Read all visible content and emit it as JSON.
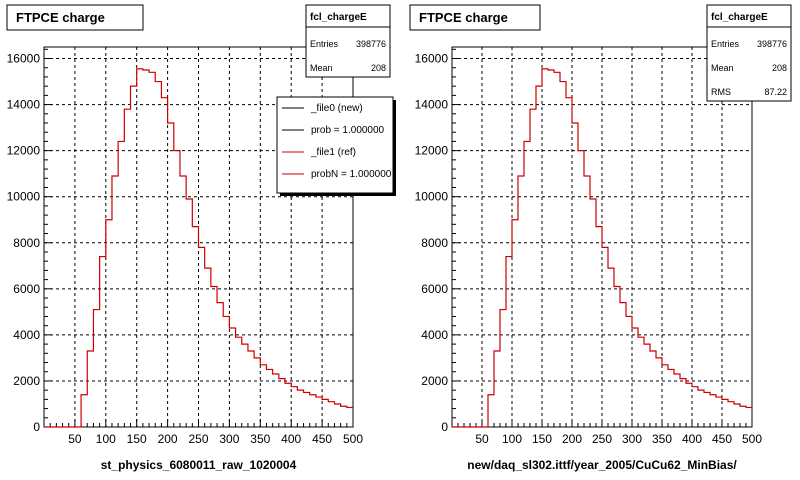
{
  "panels": [
    {
      "title": "FTPCE charge",
      "xlabel": "st_physics_6080011_raw_1020004",
      "stats": {
        "name": "fcl_chargeE",
        "rows": [
          {
            "label": "Entries",
            "value": "398776"
          },
          {
            "label": "Mean",
            "value": "208"
          }
        ]
      },
      "legend": [
        {
          "label": "_file0 (new)",
          "color": "#000000"
        },
        {
          "label": "prob = 1.000000",
          "color": "#000000"
        },
        {
          "label": "_file1 (ref)",
          "color": "#cc0000"
        },
        {
          "label": "probN = 1.000000",
          "color": "#cc0000"
        }
      ]
    },
    {
      "title": "FTPCE charge",
      "xlabel": "new/daq_sl302.ittf/year_2005/CuCu62_MinBias/",
      "stats": {
        "name": "fcl_chargeE",
        "rows": [
          {
            "label": "Entries",
            "value": "398776"
          },
          {
            "label": "Mean",
            "value": "208"
          },
          {
            "label": "RMS",
            "value": "87.22"
          }
        ]
      },
      "legend": []
    }
  ],
  "colors": {
    "histogram": "#cc0000",
    "grid": "#000000"
  },
  "chart_data": [
    {
      "type": "histogram-step",
      "title": "FTPCE charge",
      "xlabel": "st_physics_6080011_raw_1020004",
      "ylabel": "",
      "xlim": [
        0,
        500
      ],
      "ylim": [
        0,
        16500
      ],
      "xticks": [
        50,
        100,
        150,
        200,
        250,
        300,
        350,
        400,
        450,
        500
      ],
      "yticks": [
        0,
        2000,
        4000,
        6000,
        8000,
        10000,
        12000,
        14000,
        16000
      ],
      "grid": true,
      "bin_width": 10,
      "bin_edges_start": 0,
      "values": [
        0,
        0,
        0,
        0,
        0,
        0,
        1400,
        3300,
        5100,
        7400,
        9000,
        10900,
        12400,
        13800,
        14800,
        15550,
        15500,
        15400,
        15000,
        14300,
        13200,
        12000,
        10900,
        9900,
        8700,
        7800,
        6900,
        6100,
        5400,
        4800,
        4300,
        3900,
        3600,
        3300,
        3000,
        2700,
        2500,
        2300,
        2100,
        1900,
        1750,
        1600,
        1500,
        1400,
        1300,
        1200,
        1100,
        1000,
        900,
        850
      ]
    },
    {
      "type": "histogram-step",
      "title": "FTPCE charge",
      "xlabel": "new/daq_sl302.ittf/year_2005/CuCu62_MinBias/",
      "ylabel": "",
      "xlim": [
        0,
        500
      ],
      "ylim": [
        0,
        16500
      ],
      "xticks": [
        50,
        100,
        150,
        200,
        250,
        300,
        350,
        400,
        450,
        500
      ],
      "yticks": [
        0,
        2000,
        4000,
        6000,
        8000,
        10000,
        12000,
        14000,
        16000
      ],
      "grid": true,
      "bin_width": 10,
      "bin_edges_start": 0,
      "values": [
        0,
        0,
        0,
        0,
        0,
        0,
        1400,
        3300,
        5100,
        7400,
        9000,
        10900,
        12400,
        13800,
        14800,
        15550,
        15500,
        15400,
        15000,
        14300,
        13200,
        12000,
        10900,
        9900,
        8700,
        7800,
        6900,
        6100,
        5400,
        4800,
        4300,
        3900,
        3600,
        3300,
        3000,
        2700,
        2500,
        2300,
        2100,
        1900,
        1750,
        1600,
        1500,
        1400,
        1300,
        1200,
        1100,
        1000,
        900,
        850
      ]
    }
  ]
}
